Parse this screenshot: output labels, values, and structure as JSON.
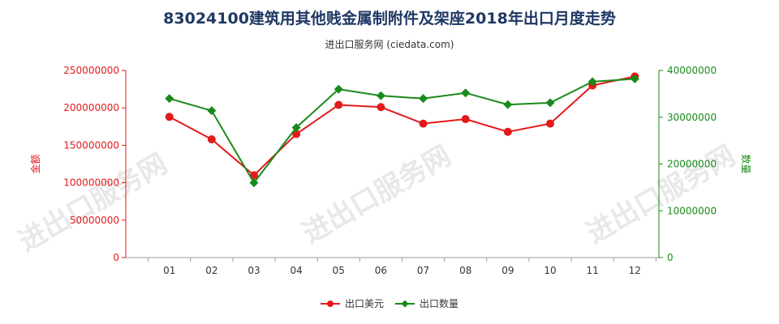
{
  "chart_data": {
    "type": "line",
    "title": "83024100建筑用其他贱金属制附件及架座2018年出口月度走势",
    "subtitle": "进出口服务网 (ciedata.com)",
    "categories": [
      "01",
      "02",
      "03",
      "04",
      "05",
      "06",
      "07",
      "08",
      "09",
      "10",
      "11",
      "12"
    ],
    "y_left": {
      "label": "金额",
      "ylim": [
        0,
        250000000
      ],
      "ticks": [
        "0",
        "50000000",
        "100000000",
        "150000000",
        "200000000",
        "250000000"
      ],
      "color": "#e31a1c"
    },
    "y_right": {
      "label": "数量",
      "ylim": [
        0,
        40000000
      ],
      "ticks": [
        "0",
        "10000000",
        "20000000",
        "30000000",
        "40000000"
      ],
      "color": "#1a8a1a"
    },
    "series": [
      {
        "name": "出口美元",
        "axis": "left",
        "color": "#e31a1c",
        "marker": "circle",
        "values": [
          188000000,
          158000000,
          110000000,
          165000000,
          204000000,
          201000000,
          179000000,
          185000000,
          168000000,
          179000000,
          230000000,
          242000000
        ]
      },
      {
        "name": "出口数量",
        "axis": "right",
        "color": "#1a8a1a",
        "marker": "diamond",
        "values": [
          34000000,
          31400000,
          16000000,
          27800000,
          36000000,
          34600000,
          34000000,
          35200000,
          32700000,
          33100000,
          37600000,
          38200000
        ]
      }
    ],
    "grid": false,
    "legend_position": "bottom"
  },
  "watermark": "进出口服务网"
}
